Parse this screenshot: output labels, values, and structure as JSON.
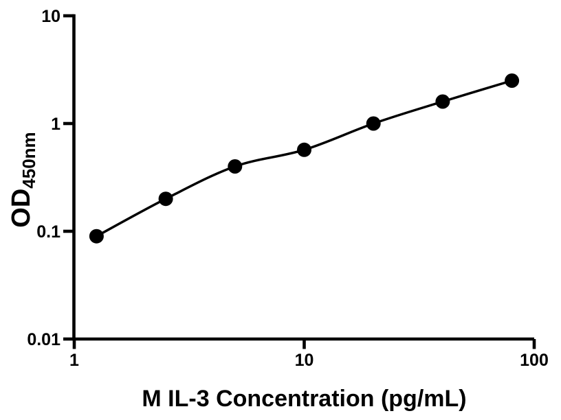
{
  "chart_data": {
    "type": "scatter",
    "title": "",
    "xlabel": "M IL-3 Concentration (pg/mL)",
    "ylabel_main": "OD",
    "ylabel_sub": "450nm",
    "x": [
      1.25,
      2.5,
      5,
      10,
      20,
      40,
      80
    ],
    "y": [
      0.09,
      0.2,
      0.4,
      0.57,
      1.0,
      1.6,
      2.5
    ],
    "xscale": "log",
    "yscale": "log",
    "xlim": [
      1,
      100
    ],
    "ylim": [
      0.01,
      10
    ],
    "xticks": [
      1,
      10,
      100
    ],
    "xtick_labels": [
      "1",
      "10",
      "100"
    ],
    "yticks": [
      10,
      1,
      0.1,
      0.01
    ],
    "ytick_labels": [
      "10",
      "1",
      "0.1",
      "0.01"
    ],
    "grid": false,
    "legend": false,
    "line_color": "#000000",
    "marker_color": "#000000",
    "axis_color": "#000000",
    "background_color": "#ffffff"
  }
}
